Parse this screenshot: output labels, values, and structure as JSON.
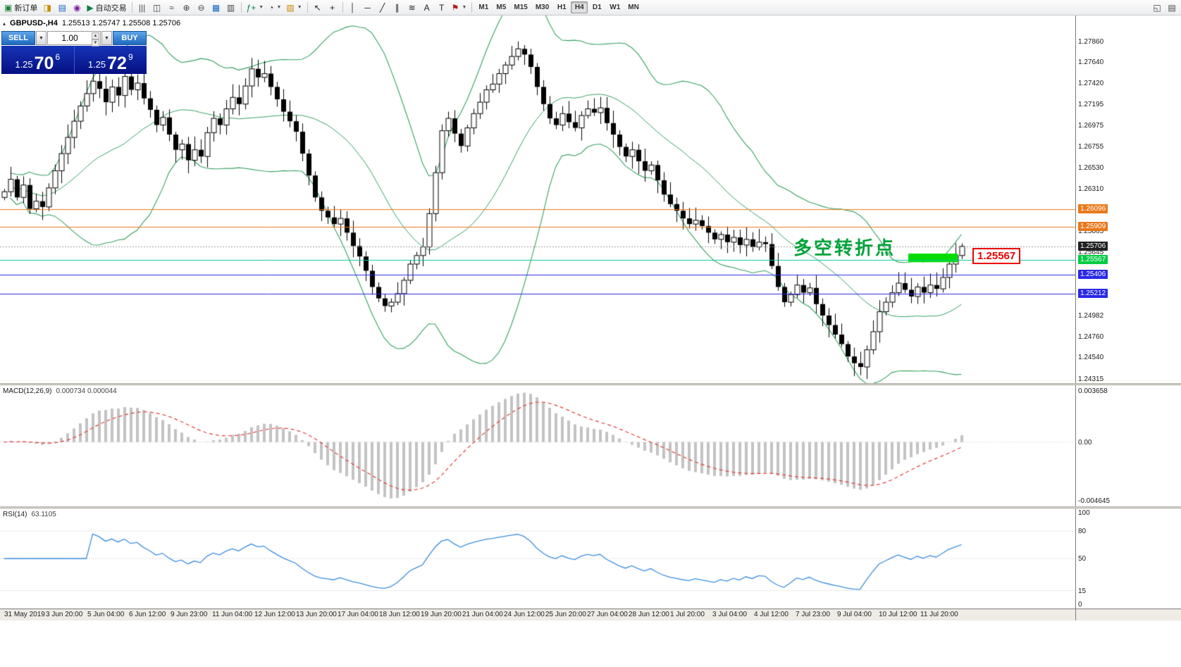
{
  "app": {
    "name": "MetaTrader 4"
  },
  "toolbar": {
    "items": [
      {
        "name": "new-order-button",
        "glyph": "▣",
        "color": "#1A7F37",
        "label": "新订单"
      },
      {
        "name": "chart-profiles-button",
        "glyph": "◨",
        "color": "#C98A00"
      },
      {
        "name": "market-watch-button",
        "glyph": "▤",
        "color": "#1565C0"
      },
      {
        "name": "navigator-button",
        "glyph": "◉",
        "color": "#7B1FA2"
      },
      {
        "name": "autotrading-button",
        "glyph": "▶",
        "color": "#0B8043",
        "label": "自动交易"
      },
      {
        "sep": true
      },
      {
        "name": "bar-chart-button",
        "glyph": "|||",
        "color": "#444444"
      },
      {
        "name": "candlestick-chart-button",
        "glyph": "◫",
        "color": "#444444"
      },
      {
        "name": "line-chart-button",
        "glyph": "≈",
        "color": "#444444"
      },
      {
        "name": "zoom-in-button",
        "glyph": "⊕",
        "color": "#444444"
      },
      {
        "name": "zoom-out-button",
        "glyph": "⊖",
        "color": "#444444"
      },
      {
        "name": "tile-windows-button",
        "glyph": "▦",
        "color": "#1565C0"
      },
      {
        "name": "arrange-windows-button",
        "glyph": "▥",
        "color": "#444444"
      },
      {
        "sep": true
      },
      {
        "name": "indicators-button",
        "glyph": "ƒ+",
        "color": "#0B8043",
        "dropdown": true
      },
      {
        "name": "periods-button",
        "glyph": "◔",
        "color": "#444444",
        "dropdown": true
      },
      {
        "name": "templates-button",
        "glyph": "▨",
        "color": "#C98A00",
        "dropdown": true
      },
      {
        "sep": true
      },
      {
        "name": "cursor-button",
        "glyph": "↖",
        "color": "#222222"
      },
      {
        "name": "crosshair-button",
        "glyph": "+",
        "color": "#222222"
      },
      {
        "sep": true
      },
      {
        "name": "vertical-line-button",
        "glyph": "│",
        "color": "#222222"
      },
      {
        "name": "horizontal-line-button",
        "glyph": "─",
        "color": "#222222"
      },
      {
        "name": "trendline-button",
        "glyph": "╱",
        "color": "#222222"
      },
      {
        "name": "equidistant-channel-button",
        "glyph": "∥",
        "color": "#222222"
      },
      {
        "name": "fibonacci-button",
        "glyph": "≋",
        "color": "#222222"
      },
      {
        "name": "text-button",
        "glyph": "A",
        "color": "#222222"
      },
      {
        "name": "text-label-button",
        "glyph": "T",
        "color": "#222222"
      },
      {
        "name": "shapes-button",
        "glyph": "⚑",
        "color": "#B71C1C",
        "dropdown": true
      },
      {
        "sep": true
      }
    ],
    "timeframes": [
      "M1",
      "M5",
      "M15",
      "M30",
      "H1",
      "H4",
      "D1",
      "W1",
      "MN"
    ],
    "active_timeframe": "H4",
    "right_items": [
      {
        "name": "new-chart-button",
        "glyph": "◱",
        "color": "#444444"
      },
      {
        "name": "chart-list-button",
        "glyph": "▤",
        "color": "#444444"
      }
    ]
  },
  "chart": {
    "symbol_period": "GBPUSD-,H4",
    "ohlc_text": "1.25513 1.25747 1.25508 1.25706",
    "collapse_icon": "▴"
  },
  "trade_panel": {
    "sell_label": "SELL",
    "buy_label": "BUY",
    "volume": "1.00",
    "sell_price": {
      "prefix": "1.25",
      "big": "70",
      "sup": "6"
    },
    "buy_price": {
      "prefix": "1.25",
      "big": "72",
      "sup": "9"
    }
  },
  "annotations": {
    "turning_point": "多空转折点",
    "price_flag": "1.25567"
  },
  "main_chart": {
    "price_max": 1.2813,
    "price_min": 1.2427,
    "axis_ticks": [
      1.2786,
      1.2764,
      1.2742,
      1.27195,
      1.26975,
      1.26755,
      1.2653,
      1.2631,
      1.25865,
      1.25645,
      1.24982,
      1.2476,
      1.2454,
      1.24315
    ],
    "bid_price": 1.25706,
    "hlines": [
      {
        "name": "resistance-line-1",
        "price": 1.26096,
        "color": "#E8791A",
        "label_bg": "#E8791A",
        "style": "solid",
        "width": 1
      },
      {
        "name": "resistance-line-2",
        "price": 1.25909,
        "color": "#E8791A",
        "label_bg": "#E8791A",
        "style": "solid",
        "width": 1
      },
      {
        "name": "bid-price-line",
        "price": 1.25706,
        "color": "#9a9a9a",
        "label_bg": "#1f1f1f",
        "style": "dot",
        "width": 1
      },
      {
        "name": "turning-point-line",
        "price": 1.25567,
        "color": "#00C79B",
        "label_bg": "#00CC44",
        "style": "solid",
        "width": 1
      },
      {
        "name": "support-line-1",
        "price": 1.25406,
        "color": "#2929E8",
        "label_bg": "#2929E8",
        "style": "solid",
        "width": 1
      },
      {
        "name": "support-line-2",
        "price": 1.25212,
        "color": "#2929E8",
        "label_bg": "#2929E8",
        "style": "solid",
        "width": 1
      }
    ],
    "highlight_rect": {
      "bar_start": 143,
      "bar_end": 150,
      "price_top": 1.2563,
      "price_bottom": 1.2554,
      "color": "#00DC00"
    }
  },
  "indicators": {
    "bollinger": {
      "period": 20,
      "deviation": 2,
      "color": "#35A060"
    },
    "macd": {
      "title": "MACD(12,26,9)",
      "values": "0.000734 0.000044",
      "fast": 12,
      "slow": 26,
      "signal": 9,
      "hist_color": "#c3c3c3",
      "signal_color": "#E23A3A",
      "scale_top": "0.003658",
      "scale_zero": "0.00",
      "scale_bottom": "-0.004645"
    },
    "rsi": {
      "title": "RSI(14)",
      "value": "63.1105",
      "period": 14,
      "color": "#3E8EDE",
      "levels": [
        80,
        50,
        15
      ],
      "scale_labels": [
        100,
        80,
        50,
        15,
        0
      ]
    }
  },
  "chart_data": {
    "type": "candlestick",
    "symbol": "GBPUSD",
    "timeframe": "H4",
    "quote": {
      "open": 1.25513,
      "high": 1.25747,
      "low": 1.25508,
      "close": 1.25706
    },
    "first_open": 1.2622,
    "closes": [
      1.2628,
      1.2641,
      1.2622,
      1.2635,
      1.261,
      1.2618,
      1.2612,
      1.2632,
      1.265,
      1.2668,
      1.2685,
      1.2702,
      1.2718,
      1.2731,
      1.2744,
      1.2736,
      1.2722,
      1.2738,
      1.2729,
      1.2749,
      1.2735,
      1.2742,
      1.2726,
      1.2714,
      1.2698,
      1.2706,
      1.2688,
      1.2672,
      1.2678,
      1.2661,
      1.2672,
      1.2665,
      1.269,
      1.2705,
      1.2698,
      1.2715,
      1.2727,
      1.272,
      1.2739,
      1.2757,
      1.2748,
      1.2752,
      1.2738,
      1.2725,
      1.2712,
      1.2702,
      1.2691,
      1.2668,
      1.2645,
      1.2622,
      1.2608,
      1.2601,
      1.2594,
      1.26,
      1.2585,
      1.2571,
      1.256,
      1.2545,
      1.2528,
      1.2516,
      1.2508,
      1.2512,
      1.2521,
      1.2535,
      1.2552,
      1.2561,
      1.257,
      1.2605,
      1.2648,
      1.2692,
      1.2705,
      1.2689,
      1.2676,
      1.2695,
      1.271,
      1.2722,
      1.2735,
      1.2741,
      1.2752,
      1.2761,
      1.277,
      1.2778,
      1.2772,
      1.2759,
      1.2738,
      1.272,
      1.2705,
      1.2698,
      1.271,
      1.2701,
      1.2695,
      1.2708,
      1.2715,
      1.2711,
      1.2716,
      1.27,
      1.2688,
      1.2675,
      1.2665,
      1.2672,
      1.266,
      1.265,
      1.2656,
      1.264,
      1.2625,
      1.2615,
      1.2608,
      1.26,
      1.2594,
      1.2598,
      1.2592,
      1.2585,
      1.2578,
      1.2583,
      1.2575,
      1.258,
      1.2572,
      1.2578,
      1.257,
      1.2575,
      1.2573,
      1.255,
      1.2528,
      1.2512,
      1.252,
      1.253,
      1.2522,
      1.2527,
      1.251,
      1.2498,
      1.2488,
      1.2478,
      1.2468,
      1.2455,
      1.2448,
      1.2444,
      1.2462,
      1.2481,
      1.2502,
      1.2512,
      1.2522,
      1.2532,
      1.2525,
      1.2518,
      1.2528,
      1.2522,
      1.253,
      1.2526,
      1.2538,
      1.2552,
      1.2561,
      1.25706
    ],
    "x_axis_labels": [
      "31 May 2019",
      "3 Jun 20:00",
      "5 Jun 04:00",
      "6 Jun 12:00",
      "9 Jun 23:00",
      "11 Jun 04:00",
      "12 Jun 12:00",
      "13 Jun 20:00",
      "17 Jun 04:00",
      "18 Jun 12:00",
      "19 Jun 20:00",
      "21 Jun 04:00",
      "24 Jun 12:00",
      "25 Jun 20:00",
      "27 Jun 04:00",
      "28 Jun 12:00",
      "1 Jul 20:00",
      "3 Jul 04:00",
      "4 Jul 12:00",
      "7 Jul 23:00",
      "9 Jul 04:00",
      "10 Jul 12:00",
      "11 Jul 20:00"
    ]
  }
}
